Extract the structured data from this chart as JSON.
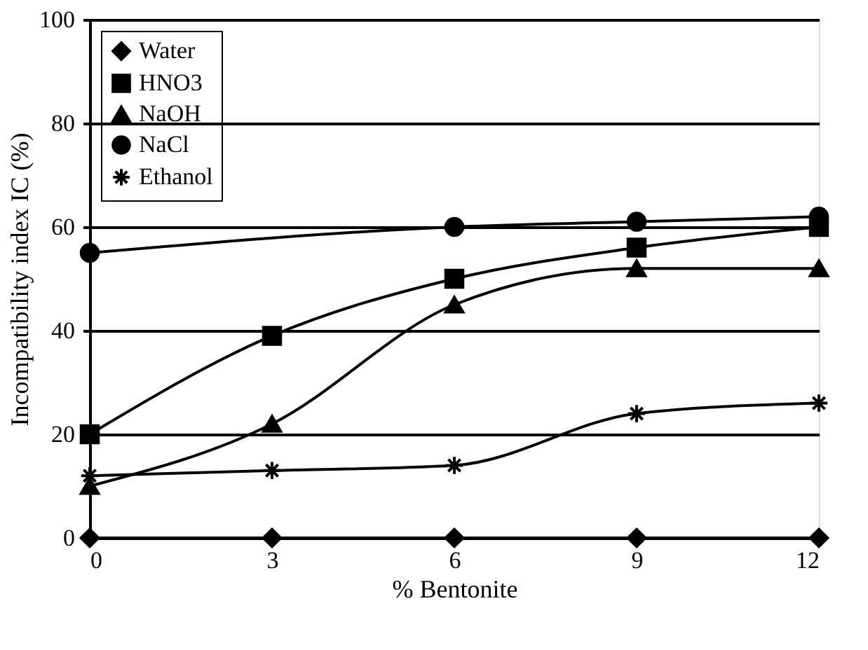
{
  "chart_data": {
    "type": "line",
    "xlabel": "% Bentonite",
    "ylabel": "Incompatibility index IC (%)",
    "x": [
      0,
      3,
      6,
      9,
      12
    ],
    "series": [
      {
        "name": "Water",
        "color": "#000000",
        "marker": "diamond",
        "values": [
          0,
          0,
          0,
          0,
          0
        ]
      },
      {
        "name": "HNO3",
        "color": "#000000",
        "marker": "square",
        "values": [
          20,
          39,
          50,
          56,
          60
        ]
      },
      {
        "name": "NaOH",
        "color": "#000000",
        "marker": "triangle",
        "values": [
          10,
          22,
          45,
          52,
          52
        ]
      },
      {
        "name": "NaCl",
        "color": "#000000",
        "marker": "circle",
        "x": [
          0,
          6,
          9,
          12
        ],
        "values": [
          55,
          60,
          61,
          62
        ]
      },
      {
        "name": "Ethanol",
        "color": "#000000",
        "marker": "cross",
        "values": [
          12,
          13,
          14,
          24,
          26
        ]
      }
    ],
    "xlim": [
      0,
      12
    ],
    "xticks": [
      0,
      3,
      6,
      9,
      12
    ],
    "ylim": [
      0,
      100
    ],
    "yticks": [
      0,
      20,
      40,
      60,
      80,
      100
    ],
    "grid": "y",
    "legend": "top left",
    "line_style": "solid"
  }
}
